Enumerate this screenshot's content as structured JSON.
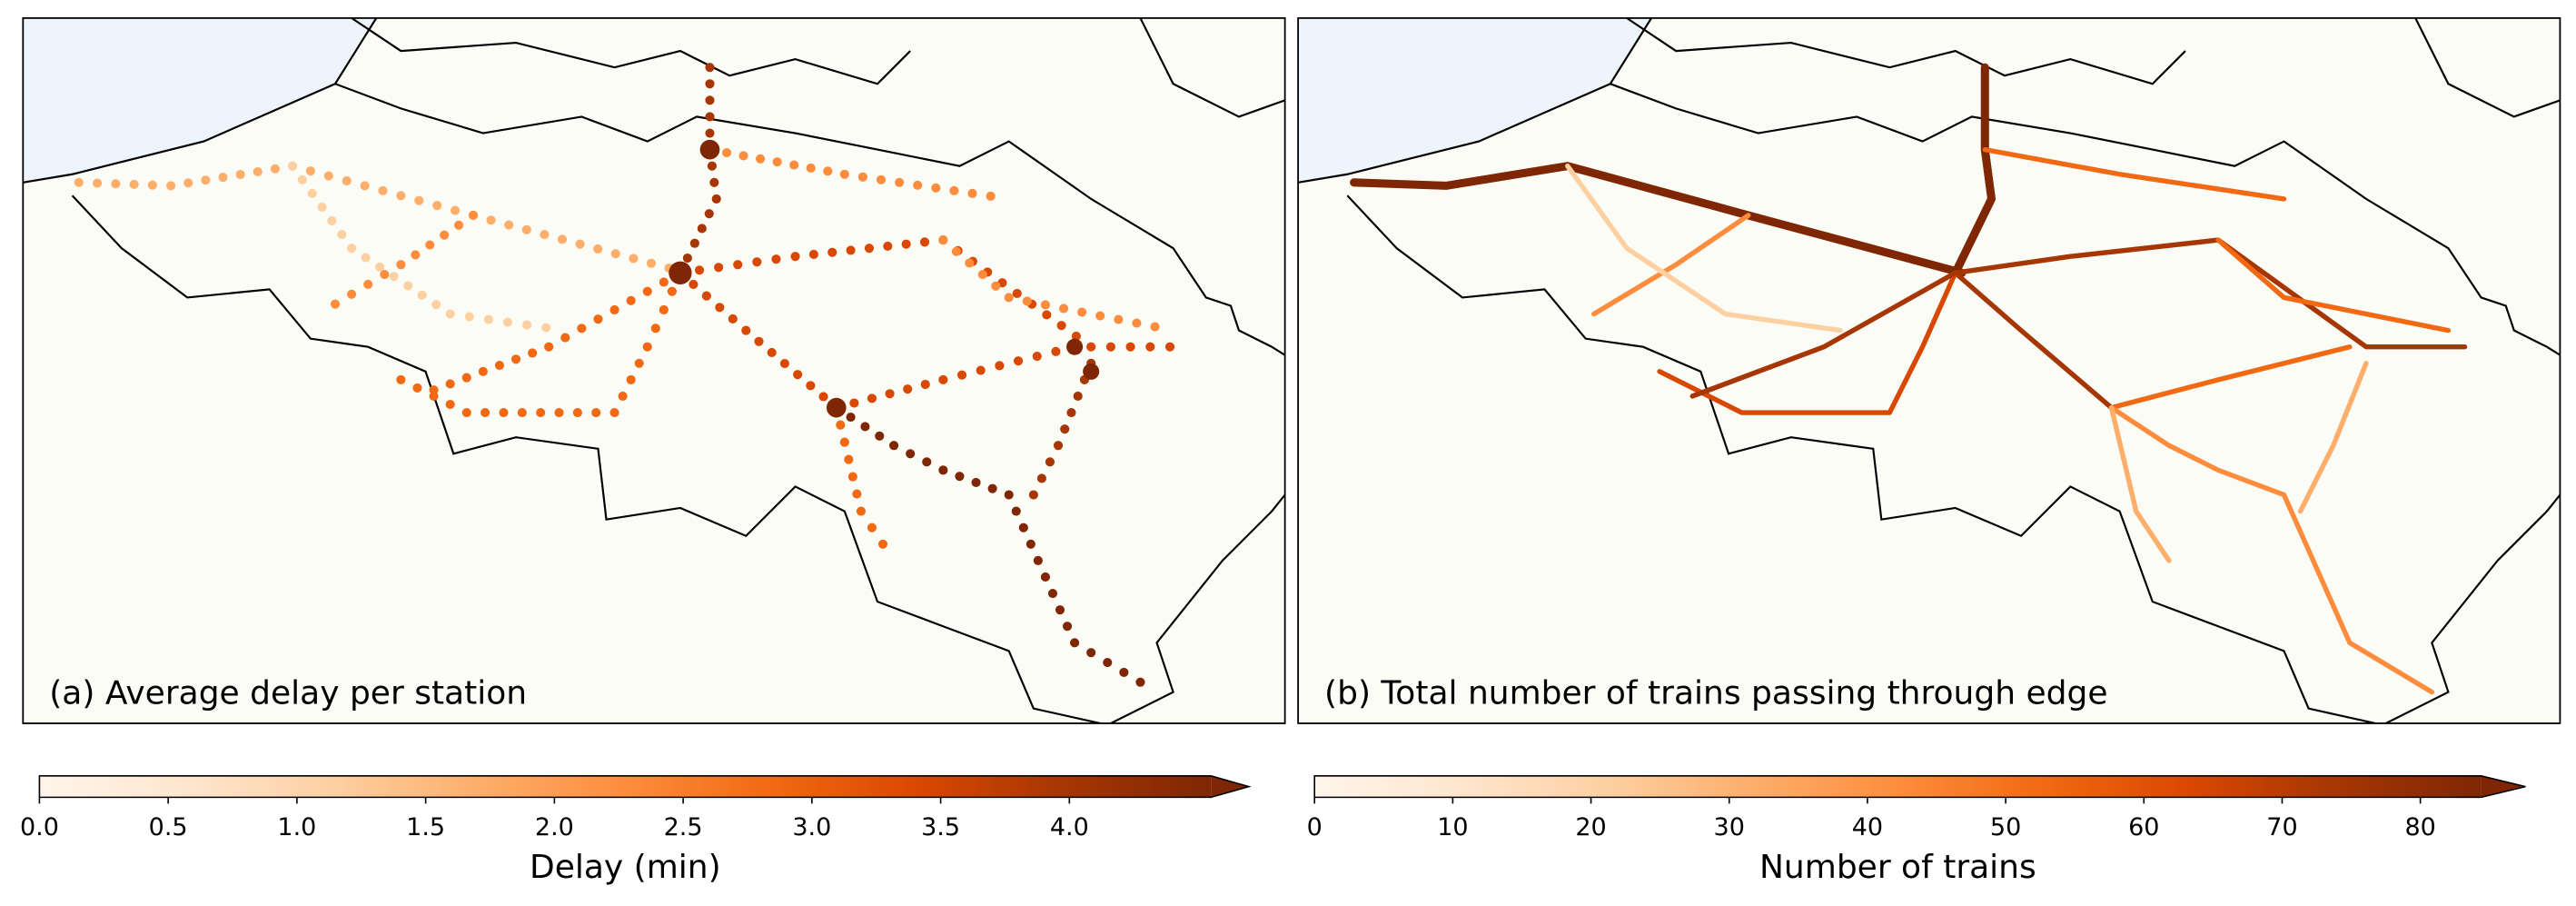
{
  "panels": [
    {
      "label": "(a) Average delay per station",
      "colorbar": {
        "label": "Delay (min)",
        "lim": [
          0,
          4.55
        ],
        "ticks": [
          {
            "value": 0,
            "label": "0.0"
          },
          {
            "value": 0.5,
            "label": "0.5"
          },
          {
            "value": 1,
            "label": "1.0"
          },
          {
            "value": 1.5,
            "label": "1.5"
          },
          {
            "value": 2,
            "label": "2.0"
          },
          {
            "value": 2.5,
            "label": "2.5"
          },
          {
            "value": 3,
            "label": "3.0"
          },
          {
            "value": 3.5,
            "label": "3.5"
          },
          {
            "value": 4,
            "label": "4.0"
          }
        ]
      }
    },
    {
      "label": "(b) Total number of trains passing through edge",
      "colorbar": {
        "label": "Number of trains",
        "lim": [
          0,
          84.4
        ],
        "ticks": [
          0,
          10,
          20,
          30,
          40,
          50,
          60,
          70,
          80
        ]
      }
    }
  ]
}
